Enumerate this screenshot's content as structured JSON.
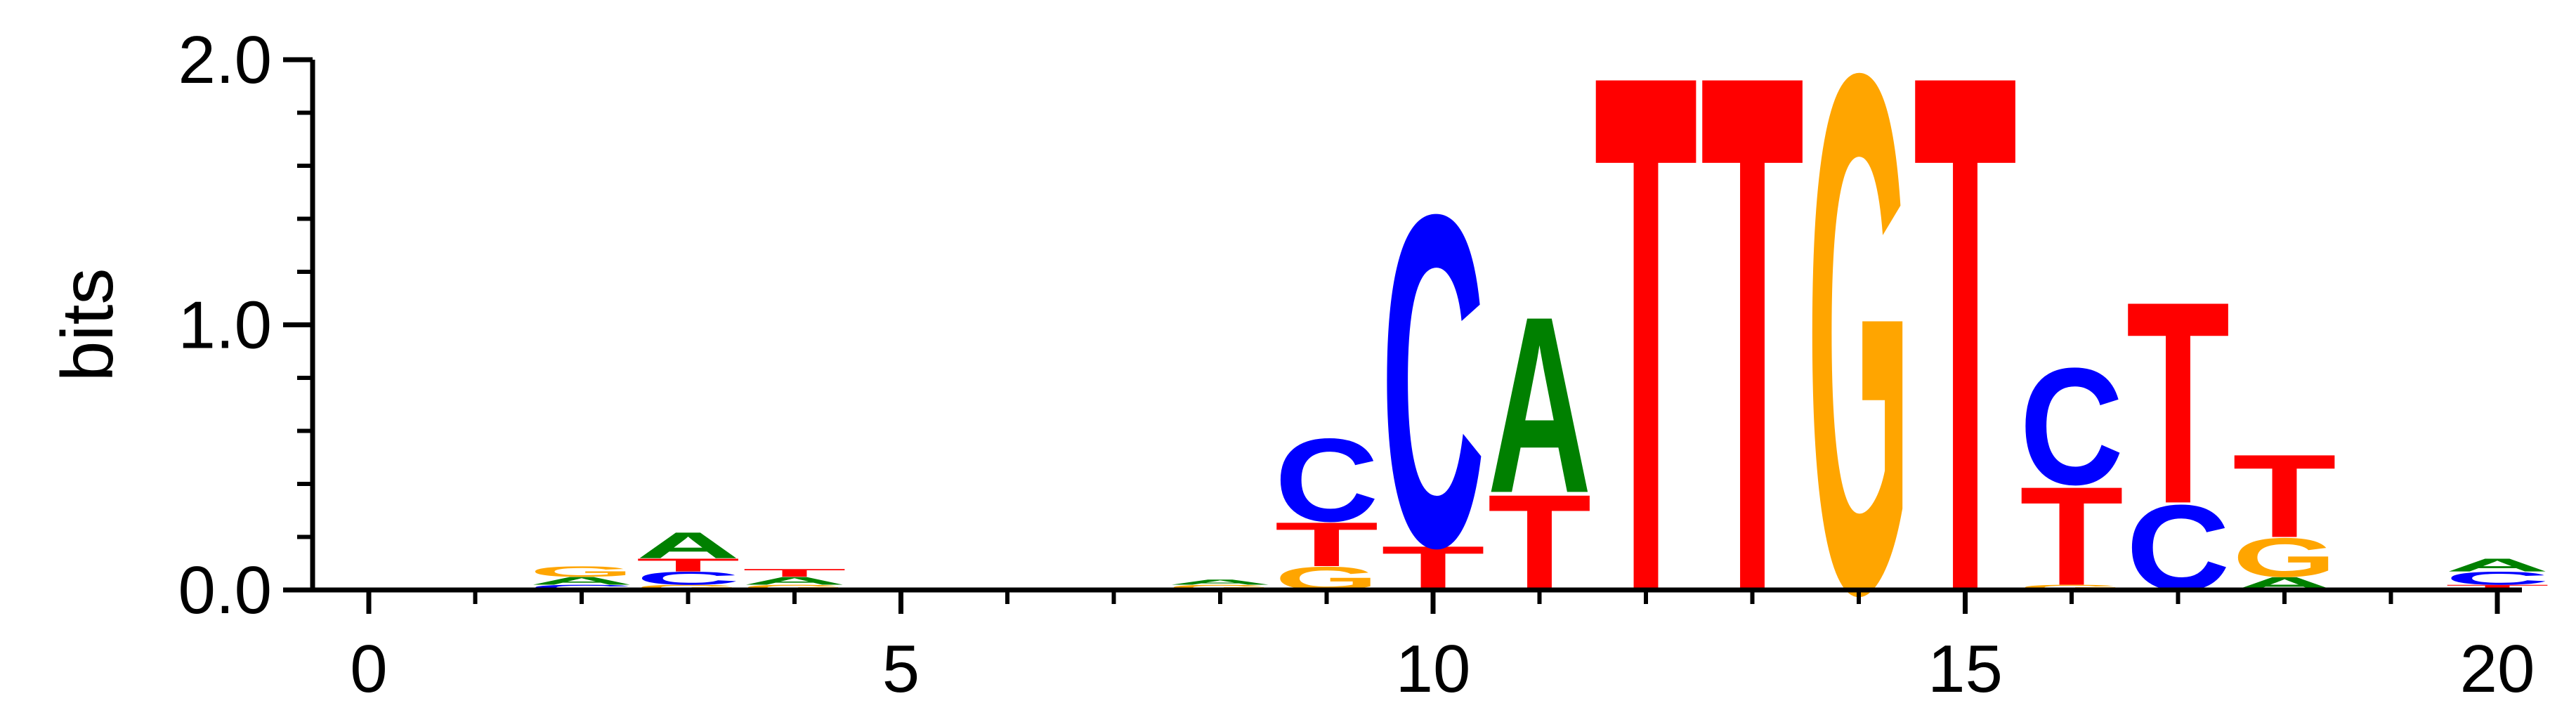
{
  "chart_data": {
    "type": "sequence-logo",
    "ylabel": "bits",
    "xlabel": "",
    "ylim": [
      0,
      2.0
    ],
    "xlim": [
      -0.7,
      20.5
    ],
    "y_tick_labels": [
      {
        "value": 0.0,
        "label": "0.0"
      },
      {
        "value": 1.0,
        "label": "1.0"
      },
      {
        "value": 2.0,
        "label": "2.0"
      }
    ],
    "y_minor_ticks": [
      0.2,
      0.4,
      0.6,
      0.8,
      1.2,
      1.4,
      1.6,
      1.8
    ],
    "x_tick_labels": [
      {
        "value": 0,
        "label": "0"
      },
      {
        "value": 5,
        "label": "5"
      },
      {
        "value": 10,
        "label": "10"
      },
      {
        "value": 15,
        "label": "15"
      },
      {
        "value": 20,
        "label": "20"
      }
    ],
    "x_minor_ticks": [
      1,
      2,
      3,
      4,
      6,
      7,
      8,
      9,
      11,
      12,
      13,
      14,
      16,
      17,
      18,
      19
    ],
    "colors": {
      "A": "#008000",
      "C": "#0000ff",
      "G": "#ffa500",
      "T": "#ff0000"
    },
    "positions": [
      {
        "x": 2,
        "letters": [
          {
            "base": "C",
            "height": 0.02
          },
          {
            "base": "A",
            "height": 0.03
          },
          {
            "base": "G",
            "height": 0.04
          }
        ]
      },
      {
        "x": 3,
        "letters": [
          {
            "base": "G",
            "height": 0.02
          },
          {
            "base": "C",
            "height": 0.05
          },
          {
            "base": "T",
            "height": 0.05
          },
          {
            "base": "A",
            "height": 0.1
          }
        ]
      },
      {
        "x": 4,
        "letters": [
          {
            "base": "G",
            "height": 0.02
          },
          {
            "base": "A",
            "height": 0.03
          },
          {
            "base": "T",
            "height": 0.03
          }
        ]
      },
      {
        "x": 8,
        "letters": [
          {
            "base": "G",
            "height": 0.02
          },
          {
            "base": "A",
            "height": 0.02
          }
        ]
      },
      {
        "x": 9,
        "letters": [
          {
            "base": "G",
            "height": 0.09
          },
          {
            "base": "T",
            "height": 0.17
          },
          {
            "base": "C",
            "height": 0.32
          }
        ]
      },
      {
        "x": 10,
        "letters": [
          {
            "base": "T",
            "height": 0.17
          },
          {
            "base": "C",
            "height": 1.28
          }
        ]
      },
      {
        "x": 11,
        "letters": [
          {
            "base": "T",
            "height": 0.37
          },
          {
            "base": "A",
            "height": 0.68
          }
        ]
      },
      {
        "x": 12,
        "letters": [
          {
            "base": "T",
            "height": 2.0
          }
        ]
      },
      {
        "x": 13,
        "letters": [
          {
            "base": "T",
            "height": 2.0
          }
        ]
      },
      {
        "x": 14,
        "letters": [
          {
            "base": "G",
            "height": 2.0
          }
        ]
      },
      {
        "x": 15,
        "letters": [
          {
            "base": "T",
            "height": 2.0
          }
        ]
      },
      {
        "x": 16,
        "letters": [
          {
            "base": "G",
            "height": 0.02
          },
          {
            "base": "T",
            "height": 0.38
          },
          {
            "base": "C",
            "height": 0.45
          }
        ]
      },
      {
        "x": 17,
        "letters": [
          {
            "base": "C",
            "height": 0.33
          },
          {
            "base": "T",
            "height": 0.78
          }
        ]
      },
      {
        "x": 18,
        "letters": [
          {
            "base": "A",
            "height": 0.05
          },
          {
            "base": "G",
            "height": 0.15
          },
          {
            "base": "T",
            "height": 0.32
          }
        ]
      },
      {
        "x": 20,
        "letters": [
          {
            "base": "T",
            "height": 0.02
          },
          {
            "base": "C",
            "height": 0.05
          },
          {
            "base": "A",
            "height": 0.05
          }
        ]
      }
    ]
  }
}
